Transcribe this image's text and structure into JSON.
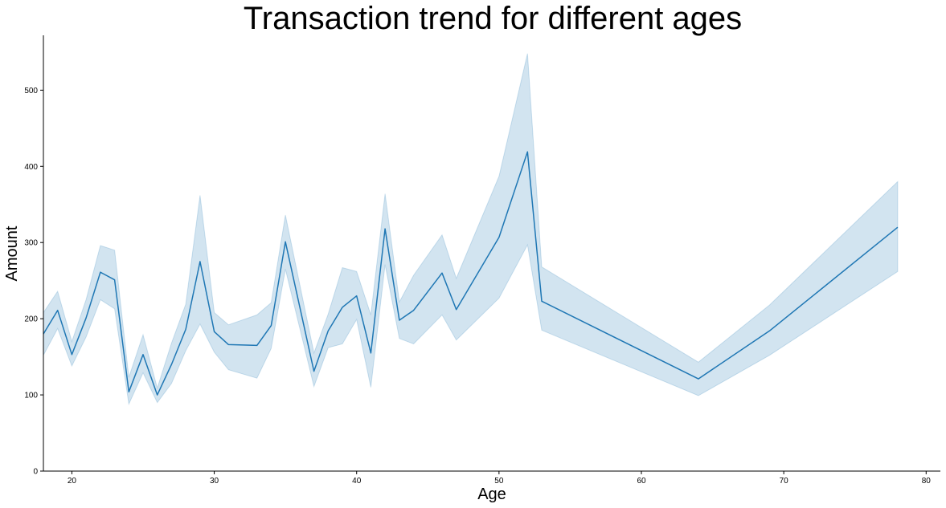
{
  "chart_data": {
    "type": "line",
    "title": "Transaction trend for different ages",
    "xlabel": "Age",
    "ylabel": "Amount",
    "xlim": [
      18,
      81
    ],
    "ylim": [
      0,
      572
    ],
    "xticks": [
      20,
      30,
      40,
      50,
      60,
      70,
      80
    ],
    "yticks": [
      0,
      100,
      200,
      300,
      400,
      500
    ],
    "grid": false,
    "colors": {
      "line": "#1f77b4",
      "band": "#1f77b4"
    },
    "series": [
      {
        "x": [
          18,
          19,
          20,
          21,
          22,
          23,
          24,
          25,
          26,
          27,
          28,
          29,
          30,
          31,
          33,
          34,
          35,
          37,
          38,
          39,
          40,
          41,
          42,
          43,
          44,
          46,
          47,
          50,
          52,
          53,
          64,
          69,
          78
        ],
        "y": [
          180,
          211,
          153,
          201,
          261,
          251,
          104,
          153,
          100,
          140,
          186,
          275,
          183,
          166,
          165,
          191,
          301,
          131,
          184,
          215,
          230,
          155,
          318,
          198,
          211,
          260,
          212,
          307,
          419,
          223,
          121,
          184,
          320
        ],
        "ci_lower": [
          152,
          187,
          138,
          176,
          225,
          213,
          88,
          129,
          90,
          115,
          158,
          193,
          156,
          133,
          122,
          161,
          265,
          111,
          162,
          167,
          199,
          110,
          271,
          174,
          167,
          205,
          172,
          227,
          297,
          185,
          99,
          152,
          262
        ],
        "ci_upper": [
          208,
          236,
          170,
          225,
          296,
          290,
          123,
          179,
          109,
          168,
          219,
          362,
          208,
          192,
          205,
          221,
          336,
          155,
          206,
          267,
          262,
          205,
          364,
          222,
          257,
          310,
          253,
          387,
          548,
          268,
          143,
          218,
          380
        ]
      }
    ]
  }
}
